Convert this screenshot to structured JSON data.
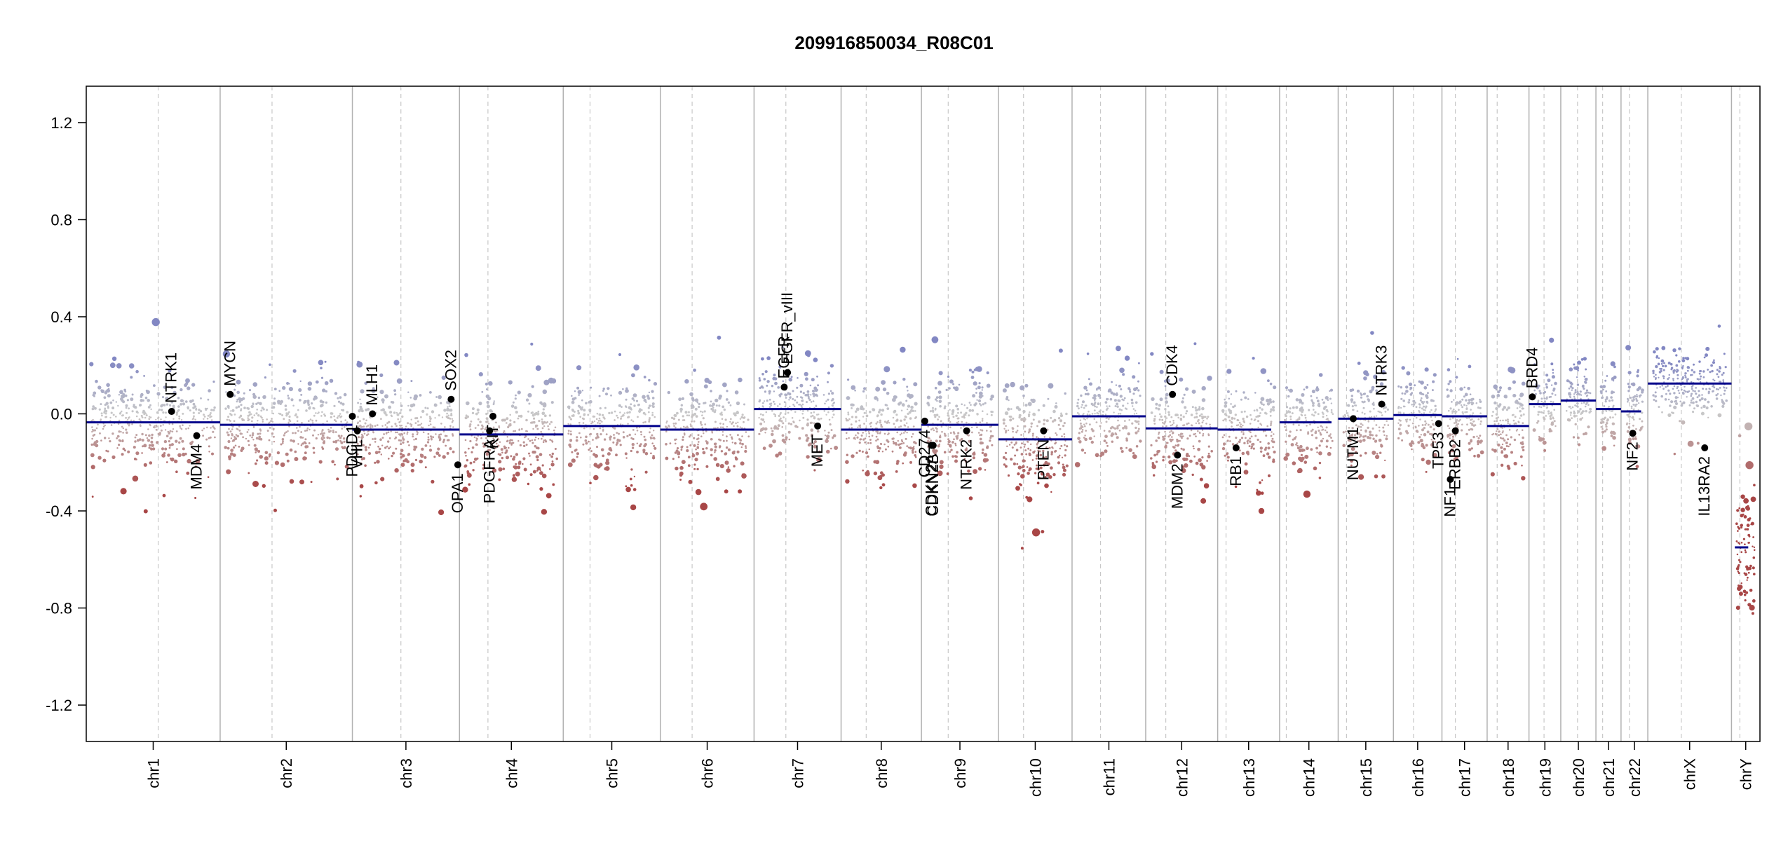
{
  "chart_data": {
    "type": "scatter",
    "title": "209916850034_R08C01",
    "xlabel": "",
    "ylabel": "",
    "ylim": [
      -1.35,
      1.35
    ],
    "y_ticks": [
      {
        "value": 1.2,
        "label": "1.2"
      },
      {
        "value": 0.8,
        "label": "0.8"
      },
      {
        "value": 0.4,
        "label": "0.4"
      },
      {
        "value": 0.0,
        "label": "0.0"
      },
      {
        "value": -0.4,
        "label": "-0.4"
      },
      {
        "value": -0.8,
        "label": "-0.8"
      },
      {
        "value": -1.2,
        "label": "-1.2"
      }
    ],
    "grid": false,
    "colors": {
      "positive": "#8c8fc4",
      "neutral": "#c8c8c8",
      "negative": "#a85050",
      "segment": "#00008b",
      "chrom_line": "#b0b0b0",
      "gene_point": "#000000"
    },
    "chromosomes": [
      {
        "name": "chr1",
        "start": 0.0,
        "end": 0.08,
        "centromere": 0.043
      },
      {
        "name": "chr2",
        "start": 0.08,
        "end": 0.159,
        "centromere": 0.111
      },
      {
        "name": "chr3",
        "start": 0.159,
        "end": 0.223,
        "centromere": 0.188
      },
      {
        "name": "chr4",
        "start": 0.223,
        "end": 0.285,
        "centromere": 0.24
      },
      {
        "name": "chr5",
        "start": 0.285,
        "end": 0.343,
        "centromere": 0.301
      },
      {
        "name": "chr6",
        "start": 0.343,
        "end": 0.399,
        "centromere": 0.362
      },
      {
        "name": "chr7",
        "start": 0.399,
        "end": 0.451,
        "centromere": 0.418
      },
      {
        "name": "chr8",
        "start": 0.451,
        "end": 0.499,
        "centromere": 0.466
      },
      {
        "name": "chr9",
        "start": 0.499,
        "end": 0.545,
        "centromere": 0.515
      },
      {
        "name": "chr10",
        "start": 0.545,
        "end": 0.589,
        "centromere": 0.56
      },
      {
        "name": "chr11",
        "start": 0.589,
        "end": 0.633,
        "centromere": 0.606
      },
      {
        "name": "chr12",
        "start": 0.633,
        "end": 0.676,
        "centromere": 0.645
      },
      {
        "name": "chr13",
        "start": 0.676,
        "end": 0.713,
        "centromere": 0.681
      },
      {
        "name": "chr14",
        "start": 0.713,
        "end": 0.748,
        "centromere": 0.717
      },
      {
        "name": "chr15",
        "start": 0.748,
        "end": 0.781,
        "centromere": 0.753
      },
      {
        "name": "chr16",
        "start": 0.781,
        "end": 0.81,
        "centromere": 0.793
      },
      {
        "name": "chr17",
        "start": 0.81,
        "end": 0.837,
        "centromere": 0.818
      },
      {
        "name": "chr18",
        "start": 0.837,
        "end": 0.862,
        "centromere": 0.843
      },
      {
        "name": "chr19",
        "start": 0.862,
        "end": 0.881,
        "centromere": 0.871
      },
      {
        "name": "chr20",
        "start": 0.881,
        "end": 0.902,
        "centromere": 0.891
      },
      {
        "name": "chr21",
        "start": 0.902,
        "end": 0.917,
        "centromere": 0.906
      },
      {
        "name": "chr22",
        "start": 0.917,
        "end": 0.933,
        "centromere": 0.922
      },
      {
        "name": "chrX",
        "start": 0.933,
        "end": 0.983,
        "centromere": 0.953
      },
      {
        "name": "chrY",
        "start": 0.983,
        "end": 1.0,
        "centromere": 0.988
      }
    ],
    "segments": [
      {
        "start": 0.0,
        "end": 0.08,
        "value": -0.035
      },
      {
        "start": 0.08,
        "end": 0.159,
        "value": -0.045
      },
      {
        "start": 0.159,
        "end": 0.223,
        "value": -0.065
      },
      {
        "start": 0.223,
        "end": 0.285,
        "value": -0.085
      },
      {
        "start": 0.285,
        "end": 0.343,
        "value": -0.05
      },
      {
        "start": 0.343,
        "end": 0.399,
        "value": -0.065
      },
      {
        "start": 0.399,
        "end": 0.451,
        "value": 0.02
      },
      {
        "start": 0.451,
        "end": 0.499,
        "value": -0.065
      },
      {
        "start": 0.499,
        "end": 0.545,
        "value": -0.045
      },
      {
        "start": 0.545,
        "end": 0.589,
        "value": -0.105
      },
      {
        "start": 0.589,
        "end": 0.633,
        "value": -0.01
      },
      {
        "start": 0.633,
        "end": 0.676,
        "value": -0.06
      },
      {
        "start": 0.676,
        "end": 0.708,
        "value": -0.065
      },
      {
        "start": 0.713,
        "end": 0.744,
        "value": -0.035
      },
      {
        "start": 0.748,
        "end": 0.781,
        "value": -0.02
      },
      {
        "start": 0.781,
        "end": 0.81,
        "value": -0.005
      },
      {
        "start": 0.81,
        "end": 0.837,
        "value": -0.01
      },
      {
        "start": 0.837,
        "end": 0.862,
        "value": -0.05
      },
      {
        "start": 0.862,
        "end": 0.881,
        "value": 0.04
      },
      {
        "start": 0.881,
        "end": 0.902,
        "value": 0.055
      },
      {
        "start": 0.902,
        "end": 0.917,
        "value": 0.02
      },
      {
        "start": 0.917,
        "end": 0.929,
        "value": 0.01
      },
      {
        "start": 0.933,
        "end": 0.983,
        "value": 0.125
      },
      {
        "start": 0.985,
        "end": 0.993,
        "value": -0.55
      }
    ],
    "scatter_profile": [
      {
        "chrom": "chr1",
        "mean": -0.035,
        "spread": 0.16
      },
      {
        "chrom": "chr2",
        "mean": -0.045,
        "spread": 0.15
      },
      {
        "chrom": "chr3",
        "mean": -0.065,
        "spread": 0.15
      },
      {
        "chrom": "chr4",
        "mean": -0.085,
        "spread": 0.16
      },
      {
        "chrom": "chr5",
        "mean": -0.05,
        "spread": 0.15
      },
      {
        "chrom": "chr6",
        "mean": -0.065,
        "spread": 0.15
      },
      {
        "chrom": "chr7",
        "mean": 0.02,
        "spread": 0.14
      },
      {
        "chrom": "chr8",
        "mean": -0.065,
        "spread": 0.15
      },
      {
        "chrom": "chr9",
        "mean": -0.045,
        "spread": 0.16
      },
      {
        "chrom": "chr10",
        "mean": -0.105,
        "spread": 0.17
      },
      {
        "chrom": "chr11",
        "mean": -0.01,
        "spread": 0.14
      },
      {
        "chrom": "chr12",
        "mean": -0.06,
        "spread": 0.15
      },
      {
        "chrom": "chr13",
        "mean": -0.065,
        "spread": 0.15
      },
      {
        "chrom": "chr14",
        "mean": -0.035,
        "spread": 0.14
      },
      {
        "chrom": "chr15",
        "mean": -0.02,
        "spread": 0.14
      },
      {
        "chrom": "chr16",
        "mean": -0.005,
        "spread": 0.13
      },
      {
        "chrom": "chr17",
        "mean": -0.01,
        "spread": 0.13
      },
      {
        "chrom": "chr18",
        "mean": -0.05,
        "spread": 0.14
      },
      {
        "chrom": "chr19",
        "mean": 0.04,
        "spread": 0.12
      },
      {
        "chrom": "chr20",
        "mean": 0.055,
        "spread": 0.12
      },
      {
        "chrom": "chr21",
        "mean": 0.02,
        "spread": 0.13
      },
      {
        "chrom": "chr22",
        "mean": 0.01,
        "spread": 0.12
      },
      {
        "chrom": "chrX",
        "mean": 0.125,
        "spread": 0.11
      },
      {
        "chrom": "chrY",
        "mean": -0.55,
        "spread": 0.25
      }
    ],
    "genes": [
      {
        "name": "NTRK1",
        "x": 0.051,
        "y": 0.01,
        "label_pos": "above"
      },
      {
        "name": "MDM4",
        "x": 0.066,
        "y": -0.09,
        "label_pos": "below"
      },
      {
        "name": "MYCN",
        "x": 0.086,
        "y": 0.08,
        "label_pos": "above"
      },
      {
        "name": "PDCD1",
        "x": 0.159,
        "y": -0.01,
        "label_pos": "below"
      },
      {
        "name": "VHL",
        "x": 0.162,
        "y": -0.07,
        "label_pos": "below"
      },
      {
        "name": "MLH1",
        "x": 0.171,
        "y": 0.0,
        "label_pos": "above"
      },
      {
        "name": "SOX2",
        "x": 0.218,
        "y": 0.06,
        "label_pos": "above"
      },
      {
        "name": "OPA1",
        "x": 0.222,
        "y": -0.21,
        "label_pos": "below"
      },
      {
        "name": "PDGFRA",
        "x": 0.241,
        "y": -0.07,
        "label_pos": "below"
      },
      {
        "name": "KIT",
        "x": 0.243,
        "y": -0.01,
        "label_pos": "below"
      },
      {
        "name": "EGFR",
        "x": 0.417,
        "y": 0.11,
        "label_pos": "above"
      },
      {
        "name": "EGFR_vIII",
        "x": 0.419,
        "y": 0.17,
        "label_pos": "above"
      },
      {
        "name": "MET",
        "x": 0.437,
        "y": -0.05,
        "label_pos": "below"
      },
      {
        "name": "CD274",
        "x": 0.501,
        "y": -0.03,
        "label_pos": "below"
      },
      {
        "name": "CDKN2A",
        "x": 0.505,
        "y": -0.13,
        "label_pos": "below"
      },
      {
        "name": "CDKN2B",
        "x": 0.506,
        "y": -0.13,
        "label_pos": "below"
      },
      {
        "name": "NTRK2",
        "x": 0.526,
        "y": -0.07,
        "label_pos": "below"
      },
      {
        "name": "PTEN",
        "x": 0.572,
        "y": -0.07,
        "label_pos": "below"
      },
      {
        "name": "CDK4",
        "x": 0.649,
        "y": 0.08,
        "label_pos": "above"
      },
      {
        "name": "MDM2",
        "x": 0.652,
        "y": -0.17,
        "label_pos": "below"
      },
      {
        "name": "RB1",
        "x": 0.687,
        "y": -0.14,
        "label_pos": "below"
      },
      {
        "name": "NUTM1",
        "x": 0.757,
        "y": -0.02,
        "label_pos": "below"
      },
      {
        "name": "NTRK3",
        "x": 0.774,
        "y": 0.04,
        "label_pos": "above"
      },
      {
        "name": "TP53",
        "x": 0.808,
        "y": -0.04,
        "label_pos": "below"
      },
      {
        "name": "NF1",
        "x": 0.815,
        "y": -0.27,
        "label_pos": "below"
      },
      {
        "name": "ERBB2",
        "x": 0.818,
        "y": -0.07,
        "label_pos": "below"
      },
      {
        "name": "BRD4",
        "x": 0.864,
        "y": 0.07,
        "label_pos": "above"
      },
      {
        "name": "NF2",
        "x": 0.924,
        "y": -0.08,
        "label_pos": "below"
      },
      {
        "name": "IL13RA2",
        "x": 0.967,
        "y": -0.14,
        "label_pos": "below"
      }
    ]
  }
}
